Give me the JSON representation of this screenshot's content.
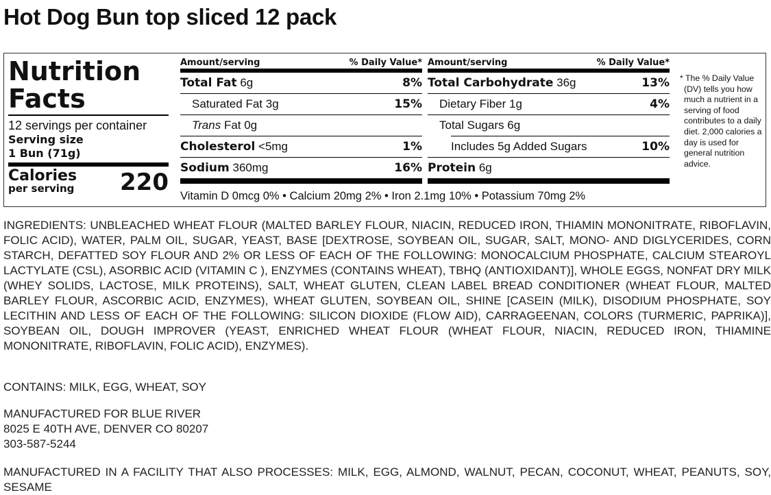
{
  "title": "Hot Dog Bun top sliced 12 pack",
  "label": {
    "heading": [
      "Nutrition",
      "Facts"
    ],
    "servings": "12 servings per container",
    "serving_size_label": "Serving size",
    "serving_size": "1 Bun (71g)",
    "calories_label": "Calories",
    "calories_sub": "per serving",
    "calories": "220",
    "amount_header": "Amount/serving",
    "dv_header": "% Daily Value*",
    "left_rows": [
      {
        "name": "Total Fat",
        "amount": "6g",
        "dv": "8%"
      },
      {
        "name": "Saturated Fat",
        "amount": "3g",
        "dv": "15%"
      },
      {
        "name": "Trans",
        "amount": "Fat 0g",
        "dv": ""
      },
      {
        "name": "Cholesterol",
        "amount": "<5mg",
        "dv": "1%"
      },
      {
        "name": "Sodium",
        "amount": "360mg",
        "dv": "16%"
      }
    ],
    "right_rows": [
      {
        "name": "Total Carbohydrate",
        "amount": "36g",
        "dv": "13%"
      },
      {
        "name": "Dietary Fiber",
        "amount": "1g",
        "dv": "4%"
      },
      {
        "name": "Total Sugars",
        "amount": "6g",
        "dv": ""
      },
      {
        "name": "Includes 5g Added Sugars",
        "amount": "",
        "dv": "10%"
      },
      {
        "name": "Protein",
        "amount": "6g",
        "dv": ""
      }
    ],
    "vitamins": "Vitamin D 0mcg 0% • Calcium 20mg 2% • Iron 2.1mg 10% • Potassium 70mg 2%",
    "footnote": "* The % Daily Value (DV) tells you how much a nutrient in a serving of food contributes to a daily diet. 2,000 calories a day is used for general nutrition advice."
  },
  "ingredients": "INGREDIENTS: UNBLEACHED WHEAT FLOUR (MALTED BARLEY FLOUR, NIACIN, REDUCED IRON, THIAMIN MONONITRATE, RIBOFLAVIN, FOLIC ACID), WATER, PALM OIL, SUGAR, YEAST, BASE [DEXTROSE, SOYBEAN OIL, SUGAR, SALT, MONO- AND DIGLYCERIDES, CORN STARCH, DEFATTED SOY FLOUR AND 2% OR LESS OF EACH OF THE FOLLOWING: MONOCALCIUM PHOSPHATE, CALCIUM STEAROYL LACTYLATE (CSL), ASORBIC ACID (VITAMIN C ), ENZYMES (CONTAINS WHEAT), TBHQ (ANTIOXIDANT)], WHOLE EGGS, NONFAT DRY MILK (WHEY SOLIDS, LACTOSE, MILK PROTEINS), SALT, WHEAT GLUTEN, CLEAN LABEL BREAD CONDITIONER (WHEAT FLOUR, MALTED BARLEY FLOUR, ASCORBIC ACID, ENZYMES), WHEAT GLUTEN, SOYBEAN OIL, SHINE [CASEIN (MILK), DISODIUM PHOSPHATE, SOY LECITHIN AND LESS OF EACH OF THE FOLLOWING: SILICON DIOXIDE (FLOW AID), CARRAGEENAN, COLORS (TURMERIC, PAPRIKA)], SOYBEAN OIL, DOUGH IMPROVER (YEAST, ENRICHED WHEAT FLOUR (WHEAT FLOUR, NIACIN, REDUCED IRON, THIAMINE MONONITRATE, RIBOFLAVIN, FOLIC ACID), ENZYMES).",
  "contains": "CONTAINS: MILK, EGG, WHEAT, SOY",
  "manufacturer": [
    "MANUFACTURED FOR BLUE RIVER",
    "8025 E 40TH AVE, DENVER CO 80207",
    "303-587-5244"
  ],
  "facility": "MANUFACTURED IN A FACILITY THAT ALSO PROCESSES: MILK, EGG, ALMOND, WALNUT, PECAN, COCONUT, WHEAT, PEANUTS, SOY, SESAME"
}
